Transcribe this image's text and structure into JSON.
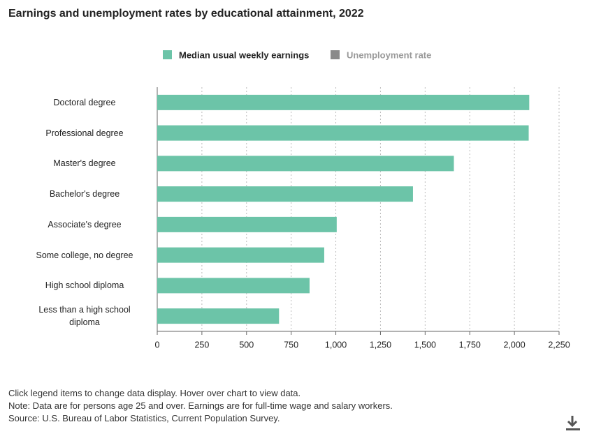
{
  "chart_data": {
    "type": "hbar",
    "title": "Earnings and unemployment rates by educational attainment, 2022",
    "categories": [
      "Doctoral degree",
      "Professional degree",
      "Master's degree",
      "Bachelor's degree",
      "Associate's degree",
      "Some college, no degree",
      "High school diploma",
      "Less than a high school diploma"
    ],
    "series": [
      {
        "name": "Median usual weekly earnings",
        "color": "#6cc4a8",
        "values": [
          2083,
          2080,
          1661,
          1432,
          1005,
          935,
          853,
          682
        ]
      },
      {
        "name": "Unemployment rate",
        "color": "#8a8a8a",
        "hidden": true
      }
    ],
    "xlim": [
      0,
      2250
    ],
    "xticks": [
      0,
      250,
      500,
      750,
      {
        "value": 1000,
        "label": "1,000"
      },
      {
        "value": 1250,
        "label": "1,250"
      },
      {
        "value": 1500,
        "label": "1,500"
      },
      {
        "value": 1750,
        "label": "1,750"
      },
      {
        "value": 2000,
        "label": "2,000"
      },
      {
        "value": 2250,
        "label": "2,250"
      }
    ],
    "grid": true,
    "notes": [
      "Click legend items to change data display. Hover over chart to view data.",
      "Note: Data are for persons age 25 and over. Earnings are for full-time wage and salary workers.",
      "Source: U.S. Bureau of Labor Statistics, Current Population Survey."
    ]
  }
}
